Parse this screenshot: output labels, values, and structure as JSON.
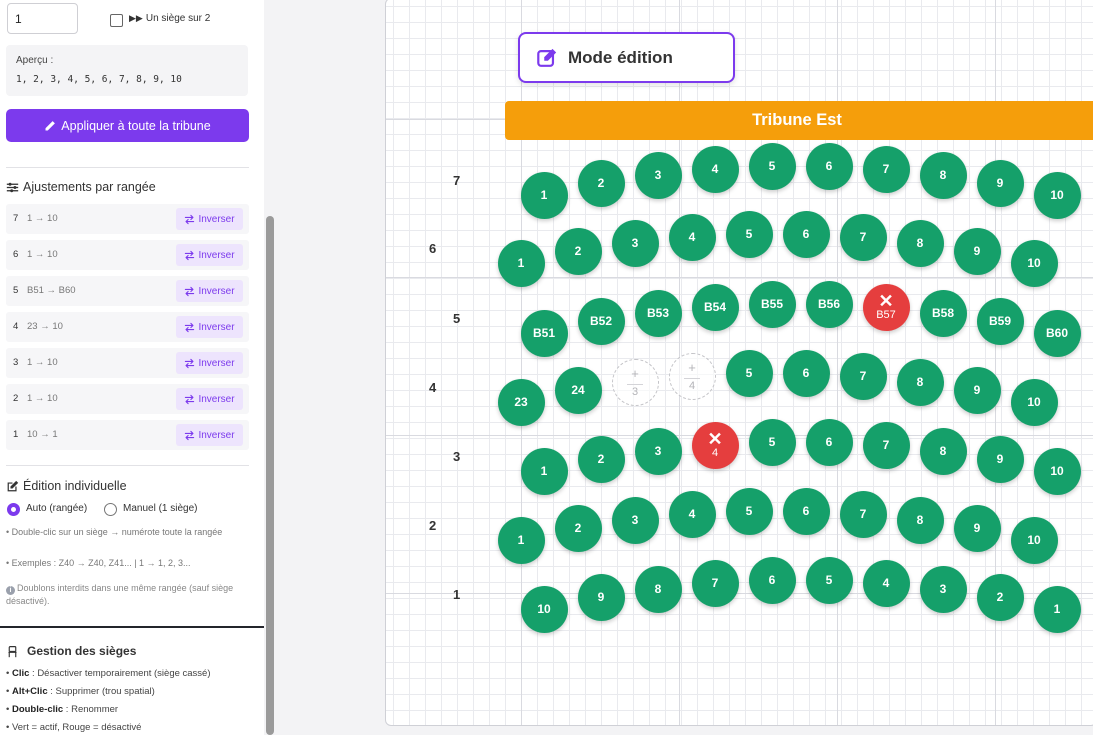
{
  "sidebar": {
    "start_input_value": "1",
    "checkbox_label": "Un siège sur 2",
    "preview": {
      "title": "Aperçu :",
      "values": "1, 2, 3, 4, 5, 6, 7, 8, 9, 10"
    },
    "apply_button": "Appliquer à toute la tribune",
    "row_adjust_title": "Ajustements par rangée",
    "row_adjustments": [
      {
        "row": "7",
        "range": "1 → 10",
        "button": "Inverser"
      },
      {
        "row": "6",
        "range": "1 → 10",
        "button": "Inverser"
      },
      {
        "row": "5",
        "range": "B51 → B60",
        "button": "Inverser"
      },
      {
        "row": "4",
        "range": "23 → 10",
        "button": "Inverser"
      },
      {
        "row": "3",
        "range": "1 → 10",
        "button": "Inverser"
      },
      {
        "row": "2",
        "range": "1 → 10",
        "button": "Inverser"
      },
      {
        "row": "1",
        "range": "10 → 1",
        "button": "Inverser"
      }
    ],
    "individual_title": "Édition individuelle",
    "radio_auto": "Auto (rangée)",
    "radio_manual": "Manuel (1 siège)",
    "note_1": "• Double-clic sur un siège → numérote toute la rangée",
    "note_2": "• Exemples : Z40 → Z40, Z41... | 1 → 1, 2, 3...",
    "note_3": "Doublons interdits dans une même rangée (sauf siège désactivé).",
    "seat_mgmt_title": "Gestion des sièges",
    "help": [
      {
        "key": "Clic",
        "text": " : Désactiver temporairement (siège cassé)"
      },
      {
        "key": "Alt+Clic",
        "text": " : Supprimer (trou spatial)"
      },
      {
        "key": "Double-clic",
        "text": " : Renommer"
      },
      {
        "key": "",
        "text": "• Vert = actif, Rouge = désactivé"
      }
    ]
  },
  "canvas": {
    "mode_badge": "Mode édition",
    "tribune_name": "Tribune Est",
    "colors": {
      "active": "#15a06a",
      "disabled": "#e53e3e",
      "accent": "#7c3aed",
      "tribune": "#f59e0b"
    },
    "rows": [
      {
        "label": "7",
        "seats": [
          {
            "label": "1",
            "status": "active"
          },
          {
            "label": "2",
            "status": "active"
          },
          {
            "label": "3",
            "status": "active"
          },
          {
            "label": "4",
            "status": "active"
          },
          {
            "label": "5",
            "status": "active"
          },
          {
            "label": "6",
            "status": "active"
          },
          {
            "label": "7",
            "status": "active"
          },
          {
            "label": "8",
            "status": "active"
          },
          {
            "label": "9",
            "status": "active"
          },
          {
            "label": "10",
            "status": "active"
          }
        ]
      },
      {
        "label": "6",
        "seats": [
          {
            "label": "1",
            "status": "active"
          },
          {
            "label": "2",
            "status": "active"
          },
          {
            "label": "3",
            "status": "active"
          },
          {
            "label": "4",
            "status": "active"
          },
          {
            "label": "5",
            "status": "active"
          },
          {
            "label": "6",
            "status": "active"
          },
          {
            "label": "7",
            "status": "active"
          },
          {
            "label": "8",
            "status": "active"
          },
          {
            "label": "9",
            "status": "active"
          },
          {
            "label": "10",
            "status": "active"
          }
        ]
      },
      {
        "label": "5",
        "seats": [
          {
            "label": "B51",
            "status": "active"
          },
          {
            "label": "B52",
            "status": "active"
          },
          {
            "label": "B53",
            "status": "active"
          },
          {
            "label": "B54",
            "status": "active"
          },
          {
            "label": "B55",
            "status": "active"
          },
          {
            "label": "B56",
            "status": "active"
          },
          {
            "label": "B57",
            "status": "disabled"
          },
          {
            "label": "B58",
            "status": "active"
          },
          {
            "label": "B59",
            "status": "active"
          },
          {
            "label": "B60",
            "status": "active"
          }
        ]
      },
      {
        "label": "4",
        "seats": [
          {
            "label": "23",
            "status": "active"
          },
          {
            "label": "24",
            "status": "active"
          },
          {
            "label": "3",
            "status": "removed"
          },
          {
            "label": "4",
            "status": "removed"
          },
          {
            "label": "5",
            "status": "active"
          },
          {
            "label": "6",
            "status": "active"
          },
          {
            "label": "7",
            "status": "active"
          },
          {
            "label": "8",
            "status": "active"
          },
          {
            "label": "9",
            "status": "active"
          },
          {
            "label": "10",
            "status": "active"
          }
        ]
      },
      {
        "label": "3",
        "seats": [
          {
            "label": "1",
            "status": "active"
          },
          {
            "label": "2",
            "status": "active"
          },
          {
            "label": "3",
            "status": "active"
          },
          {
            "label": "4",
            "status": "disabled"
          },
          {
            "label": "5",
            "status": "active"
          },
          {
            "label": "6",
            "status": "active"
          },
          {
            "label": "7",
            "status": "active"
          },
          {
            "label": "8",
            "status": "active"
          },
          {
            "label": "9",
            "status": "active"
          },
          {
            "label": "10",
            "status": "active"
          }
        ]
      },
      {
        "label": "2",
        "seats": [
          {
            "label": "1",
            "status": "active"
          },
          {
            "label": "2",
            "status": "active"
          },
          {
            "label": "3",
            "status": "active"
          },
          {
            "label": "4",
            "status": "active"
          },
          {
            "label": "5",
            "status": "active"
          },
          {
            "label": "6",
            "status": "active"
          },
          {
            "label": "7",
            "status": "active"
          },
          {
            "label": "8",
            "status": "active"
          },
          {
            "label": "9",
            "status": "active"
          },
          {
            "label": "10",
            "status": "active"
          }
        ]
      },
      {
        "label": "1",
        "seats": [
          {
            "label": "10",
            "status": "active"
          },
          {
            "label": "9",
            "status": "active"
          },
          {
            "label": "8",
            "status": "active"
          },
          {
            "label": "7",
            "status": "active"
          },
          {
            "label": "6",
            "status": "active"
          },
          {
            "label": "5",
            "status": "active"
          },
          {
            "label": "4",
            "status": "active"
          },
          {
            "label": "3",
            "status": "active"
          },
          {
            "label": "2",
            "status": "active"
          },
          {
            "label": "1",
            "status": "active"
          }
        ]
      }
    ]
  }
}
